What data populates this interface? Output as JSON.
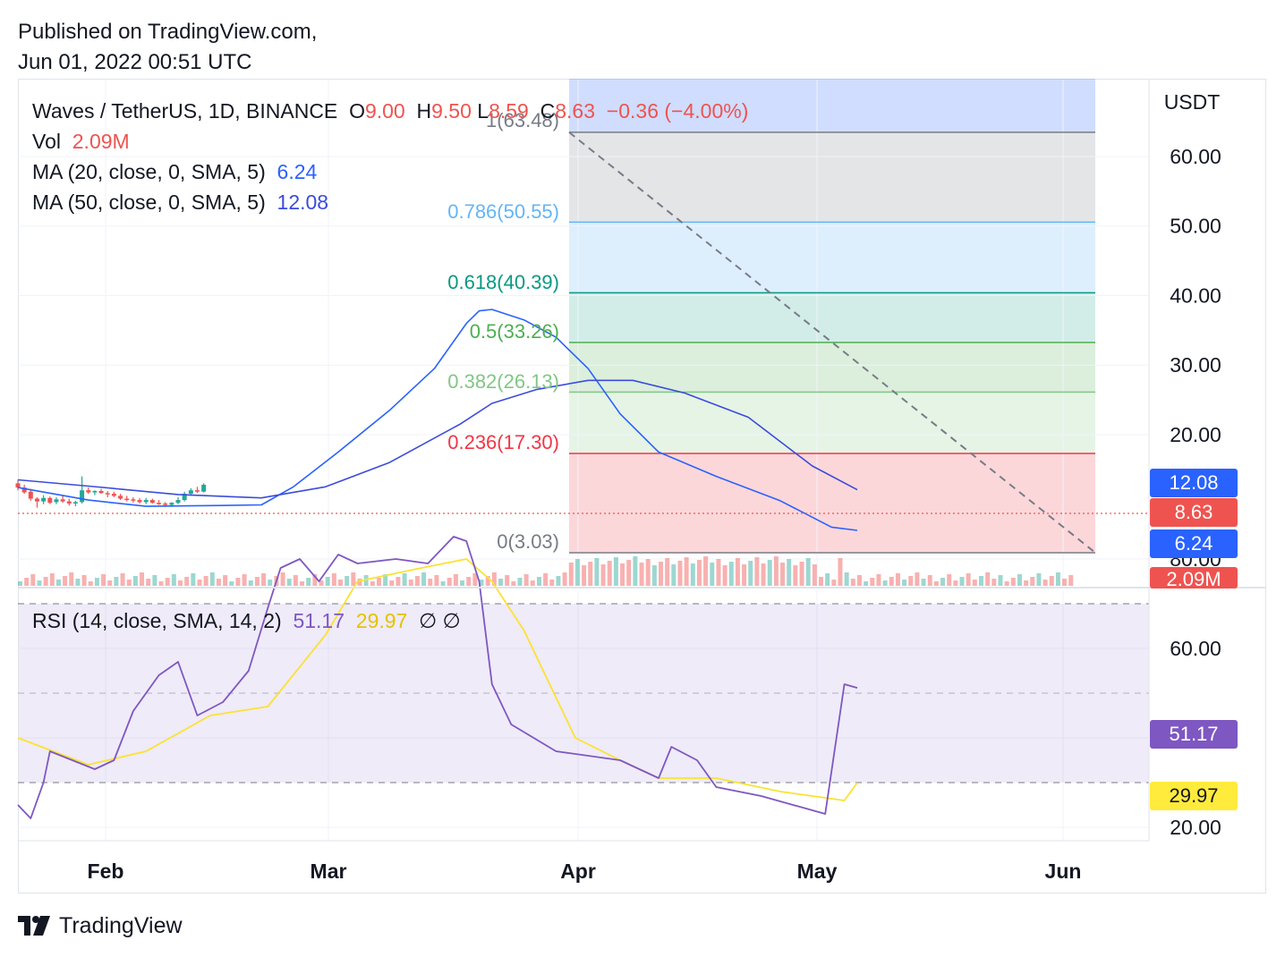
{
  "header": {
    "published": "Published on TradingView.com,",
    "timestamp": "Jun 01, 2022 00:51 UTC"
  },
  "legend": {
    "symbol": "Waves / TetherUS, 1D, BINANCE",
    "o_label": "O",
    "o_value": "9.00",
    "h_label": "H",
    "h_value": "9.50",
    "l_label": "L",
    "l_value": "8.59",
    "c_label": "C",
    "c_value": "8.63",
    "change": "−0.36 (−4.00%)",
    "vol_label": "Vol",
    "vol_value": "2.09M",
    "ma20_label": "MA (20, close, 0, SMA, 5)",
    "ma20_value": "6.24",
    "ma50_label": "MA (50, close, 0, SMA, 5)",
    "ma50_value": "12.08",
    "rsi_label": "RSI (14, close, SMA, 14, 2)",
    "rsi_value": "51.17",
    "rsi_ma_value": "29.97",
    "rsi_extra": "∅ ∅"
  },
  "price_axis": {
    "currency": "USDT",
    "ticks": [
      "60.00",
      "50.00",
      "40.00",
      "30.00",
      "20.00"
    ]
  },
  "rsi_axis": {
    "ticks": [
      "80.00",
      "60.00",
      "40.00",
      "20.00"
    ]
  },
  "time_axis": {
    "labels": [
      "Feb",
      "Mar",
      "Apr",
      "May",
      "Jun"
    ]
  },
  "price_tags": {
    "ma50": "12.08",
    "close": "8.63",
    "ma20": "6.24",
    "volume": "2.09M",
    "rsi": "51.17",
    "rsi_ma": "29.97"
  },
  "fib_labels": [
    {
      "text": "1(63.48)",
      "price": 63.48
    },
    {
      "text": "0.786(50.55)",
      "price": 50.55
    },
    {
      "text": "0.618(40.39)",
      "price": 40.39
    },
    {
      "text": "0.5(33.26)",
      "price": 33.26
    },
    {
      "text": "0.382(26.13)",
      "price": 26.13
    },
    {
      "text": "0.236(17.30)",
      "price": 17.3
    },
    {
      "text": "0(3.03)",
      "price": 3.03
    }
  ],
  "logo": {
    "text": "TradingView"
  },
  "colors": {
    "up": "#26a69a",
    "down": "#ef5350",
    "ma20": "#2962ff",
    "ma50": "#3b4cdb",
    "rsi": "#7e57c2",
    "rsi_ma": "#fbe232",
    "fib_1": "#787b86",
    "fib_786": "#64b5f6",
    "fib_618": "#089981",
    "fib_5": "#4caf50",
    "fib_382": "#81c784",
    "fib_236": "#f23645",
    "fib_0": "#787b86"
  },
  "chart_data": {
    "type": "candlestick",
    "title": "Waves / TetherUS, 1D, BINANCE",
    "ylabel": "USDT",
    "x_range": [
      "2022-01-21",
      "2022-06-01"
    ],
    "y_ticks": [
      20,
      30,
      40,
      50,
      60
    ],
    "rsi_ticks": [
      20,
      40,
      60,
      80
    ],
    "last": {
      "open": 9.0,
      "high": 9.5,
      "low": 8.59,
      "close": 8.63,
      "change": -0.36,
      "change_pct": -4.0,
      "volume": "2.09M"
    },
    "series": [
      {
        "name": "MA (20, close, 0, SMA, 5)",
        "last": 6.24,
        "points": [
          [
            "2022-01-21",
            12.4
          ],
          [
            "2022-02-01",
            10.6
          ],
          [
            "2022-02-10",
            9.7
          ],
          [
            "2022-02-20",
            9.8
          ],
          [
            "2022-02-28",
            9.9
          ],
          [
            "2022-03-05",
            12.5
          ],
          [
            "2022-03-12",
            17.5
          ],
          [
            "2022-03-20",
            23.5
          ],
          [
            "2022-03-27",
            29.5
          ],
          [
            "2022-04-01",
            36.0
          ],
          [
            "2022-04-03",
            37.8
          ],
          [
            "2022-04-05",
            38.0
          ],
          [
            "2022-04-10",
            36.5
          ],
          [
            "2022-04-15",
            34.0
          ],
          [
            "2022-04-20",
            29.5
          ],
          [
            "2022-04-25",
            23.0
          ],
          [
            "2022-05-01",
            17.5
          ],
          [
            "2022-05-10",
            14.0
          ],
          [
            "2022-05-20",
            10.5
          ],
          [
            "2022-05-28",
            6.7
          ],
          [
            "2022-06-01",
            6.24
          ]
        ]
      },
      {
        "name": "MA (50, close, 0, SMA, 5)",
        "last": 12.08,
        "points": [
          [
            "2022-01-21",
            13.5
          ],
          [
            "2022-02-01",
            12.6
          ],
          [
            "2022-02-15",
            11.4
          ],
          [
            "2022-02-28",
            10.9
          ],
          [
            "2022-03-10",
            12.5
          ],
          [
            "2022-03-20",
            16.0
          ],
          [
            "2022-03-31",
            21.5
          ],
          [
            "2022-04-05",
            24.5
          ],
          [
            "2022-04-12",
            26.5
          ],
          [
            "2022-04-20",
            27.8
          ],
          [
            "2022-04-27",
            27.8
          ],
          [
            "2022-05-05",
            26.0
          ],
          [
            "2022-05-15",
            22.5
          ],
          [
            "2022-05-25",
            15.5
          ],
          [
            "2022-06-01",
            12.08
          ]
        ]
      },
      {
        "name": "RSI (14, close, SMA, 14, 2)",
        "last": 51.17,
        "points": [
          [
            "2022-01-21",
            25
          ],
          [
            "2022-01-23",
            22
          ],
          [
            "2022-01-25",
            30
          ],
          [
            "2022-01-26",
            37
          ],
          [
            "2022-02-02",
            33
          ],
          [
            "2022-02-05",
            35
          ],
          [
            "2022-02-08",
            46
          ],
          [
            "2022-02-12",
            54
          ],
          [
            "2022-02-15",
            57
          ],
          [
            "2022-02-18",
            45
          ],
          [
            "2022-02-22",
            48
          ],
          [
            "2022-02-26",
            55
          ],
          [
            "2022-03-01",
            69
          ],
          [
            "2022-03-03",
            78
          ],
          [
            "2022-03-06",
            80
          ],
          [
            "2022-03-09",
            75
          ],
          [
            "2022-03-12",
            81
          ],
          [
            "2022-03-15",
            79
          ],
          [
            "2022-03-21",
            80
          ],
          [
            "2022-03-26",
            79
          ],
          [
            "2022-03-30",
            85
          ],
          [
            "2022-04-01",
            84
          ],
          [
            "2022-04-03",
            75
          ],
          [
            "2022-04-05",
            52
          ],
          [
            "2022-04-08",
            43
          ],
          [
            "2022-04-15",
            37
          ],
          [
            "2022-04-25",
            35
          ],
          [
            "2022-05-01",
            31
          ],
          [
            "2022-05-03",
            38
          ],
          [
            "2022-05-07",
            35
          ],
          [
            "2022-05-10",
            29
          ],
          [
            "2022-05-17",
            27
          ],
          [
            "2022-05-27",
            23
          ],
          [
            "2022-05-30",
            52
          ],
          [
            "2022-06-01",
            51.17
          ]
        ]
      },
      {
        "name": "RSI SMA",
        "last": 29.97,
        "points": [
          [
            "2022-01-21",
            40
          ],
          [
            "2022-02-01",
            34
          ],
          [
            "2022-02-10",
            37
          ],
          [
            "2022-02-20",
            45
          ],
          [
            "2022-03-01",
            47
          ],
          [
            "2022-03-10",
            63
          ],
          [
            "2022-03-15",
            75
          ],
          [
            "2022-03-25",
            78
          ],
          [
            "2022-04-01",
            80
          ],
          [
            "2022-04-05",
            75
          ],
          [
            "2022-04-10",
            64
          ],
          [
            "2022-04-18",
            40
          ],
          [
            "2022-04-25",
            35
          ],
          [
            "2022-05-01",
            31
          ],
          [
            "2022-05-10",
            31
          ],
          [
            "2022-05-20",
            28
          ],
          [
            "2022-05-30",
            26
          ],
          [
            "2022-06-01",
            29.97
          ]
        ]
      }
    ],
    "candles": [
      [
        "2022-01-21",
        13.0,
        13.5,
        12.0,
        12.4
      ],
      [
        "2022-01-22",
        12.4,
        12.8,
        11.5,
        11.7
      ],
      [
        "2022-01-23",
        11.8,
        12.2,
        10.5,
        10.8
      ],
      [
        "2022-01-24",
        10.8,
        11.0,
        9.5,
        10.4
      ],
      [
        "2022-01-25",
        10.4,
        11.3,
        10.0,
        10.9
      ],
      [
        "2022-01-26",
        10.9,
        11.1,
        10.0,
        10.2
      ],
      [
        "2022-01-27",
        10.3,
        11.0,
        10.0,
        10.7
      ],
      [
        "2022-01-28",
        10.7,
        11.2,
        10.2,
        10.4
      ],
      [
        "2022-01-29",
        10.4,
        10.8,
        9.8,
        10.1
      ],
      [
        "2022-01-30",
        10.1,
        10.5,
        9.7,
        10.3
      ],
      [
        "2022-01-31",
        10.3,
        14.0,
        10.1,
        12.0
      ],
      [
        "2022-02-01",
        12.0,
        12.4,
        11.5,
        11.7
      ],
      [
        "2022-02-02",
        11.7,
        12.0,
        11.3,
        11.9
      ],
      [
        "2022-02-03",
        11.9,
        12.2,
        11.5,
        11.6
      ],
      [
        "2022-02-04",
        11.6,
        11.9,
        11.0,
        11.5
      ],
      [
        "2022-02-05",
        11.5,
        11.8,
        11.0,
        11.2
      ],
      [
        "2022-02-06",
        11.2,
        11.5,
        10.6,
        10.8
      ],
      [
        "2022-02-07",
        10.8,
        11.2,
        10.4,
        10.7
      ],
      [
        "2022-02-08",
        10.7,
        11.0,
        10.2,
        10.6
      ],
      [
        "2022-02-09",
        10.6,
        10.9,
        10.1,
        10.3
      ],
      [
        "2022-02-10",
        10.3,
        10.9,
        10.0,
        10.6
      ],
      [
        "2022-02-11",
        10.6,
        10.8,
        10.1,
        10.2
      ],
      [
        "2022-02-12",
        10.2,
        10.6,
        9.9,
        10.1
      ],
      [
        "2022-02-13",
        10.1,
        10.3,
        9.6,
        9.9
      ],
      [
        "2022-02-14",
        9.9,
        10.3,
        9.6,
        10.2
      ],
      [
        "2022-02-15",
        10.2,
        11.0,
        10.0,
        10.6
      ],
      [
        "2022-02-16",
        10.6,
        11.8,
        10.4,
        11.5
      ],
      [
        "2022-02-17",
        11.5,
        12.3,
        11.2,
        12.0
      ],
      [
        "2022-02-18",
        12.0,
        12.5,
        11.6,
        11.8
      ],
      [
        "2022-02-19",
        11.8,
        13.0,
        11.7,
        12.8
      ]
    ]
  }
}
